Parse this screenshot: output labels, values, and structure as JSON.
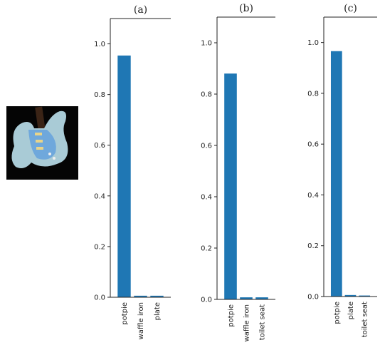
{
  "chart_data": [
    {
      "type": "bar",
      "title": "(a)",
      "categories": [
        "potpie",
        "waffle iron",
        "plate"
      ],
      "values": [
        0.954,
        0.006,
        0.006
      ],
      "color": "#1f77b4",
      "ylim": [
        0,
        1.1
      ],
      "yticks": [
        {
          "value": 0,
          "label": "0.0"
        },
        0.2,
        0.4,
        0.6,
        0.8,
        {
          "value": 1,
          "label": "1.0"
        }
      ]
    },
    {
      "type": "bar",
      "title": "(b)",
      "categories": [
        "potpie",
        "waffle iron",
        "toilet seat"
      ],
      "values": [
        0.88,
        0.008,
        0.008
      ],
      "color": "#1f77b4",
      "ylim": [
        0,
        1.1
      ],
      "yticks": [
        {
          "value": 0,
          "label": "0.0"
        },
        0.2,
        0.4,
        0.6,
        0.8,
        {
          "value": 1,
          "label": "1.0"
        }
      ]
    },
    {
      "type": "bar",
      "title": "(c)",
      "categories": [
        "potpie",
        "plate",
        "toilet seat"
      ],
      "values": [
        0.966,
        0.006,
        0.004
      ],
      "color": "#1f77b4",
      "ylim": [
        0,
        1.1
      ],
      "yticks": [
        {
          "value": 0,
          "label": "0.0"
        },
        0.2,
        0.4,
        0.6,
        0.8,
        {
          "value": 1,
          "label": "1.0"
        }
      ]
    }
  ]
}
